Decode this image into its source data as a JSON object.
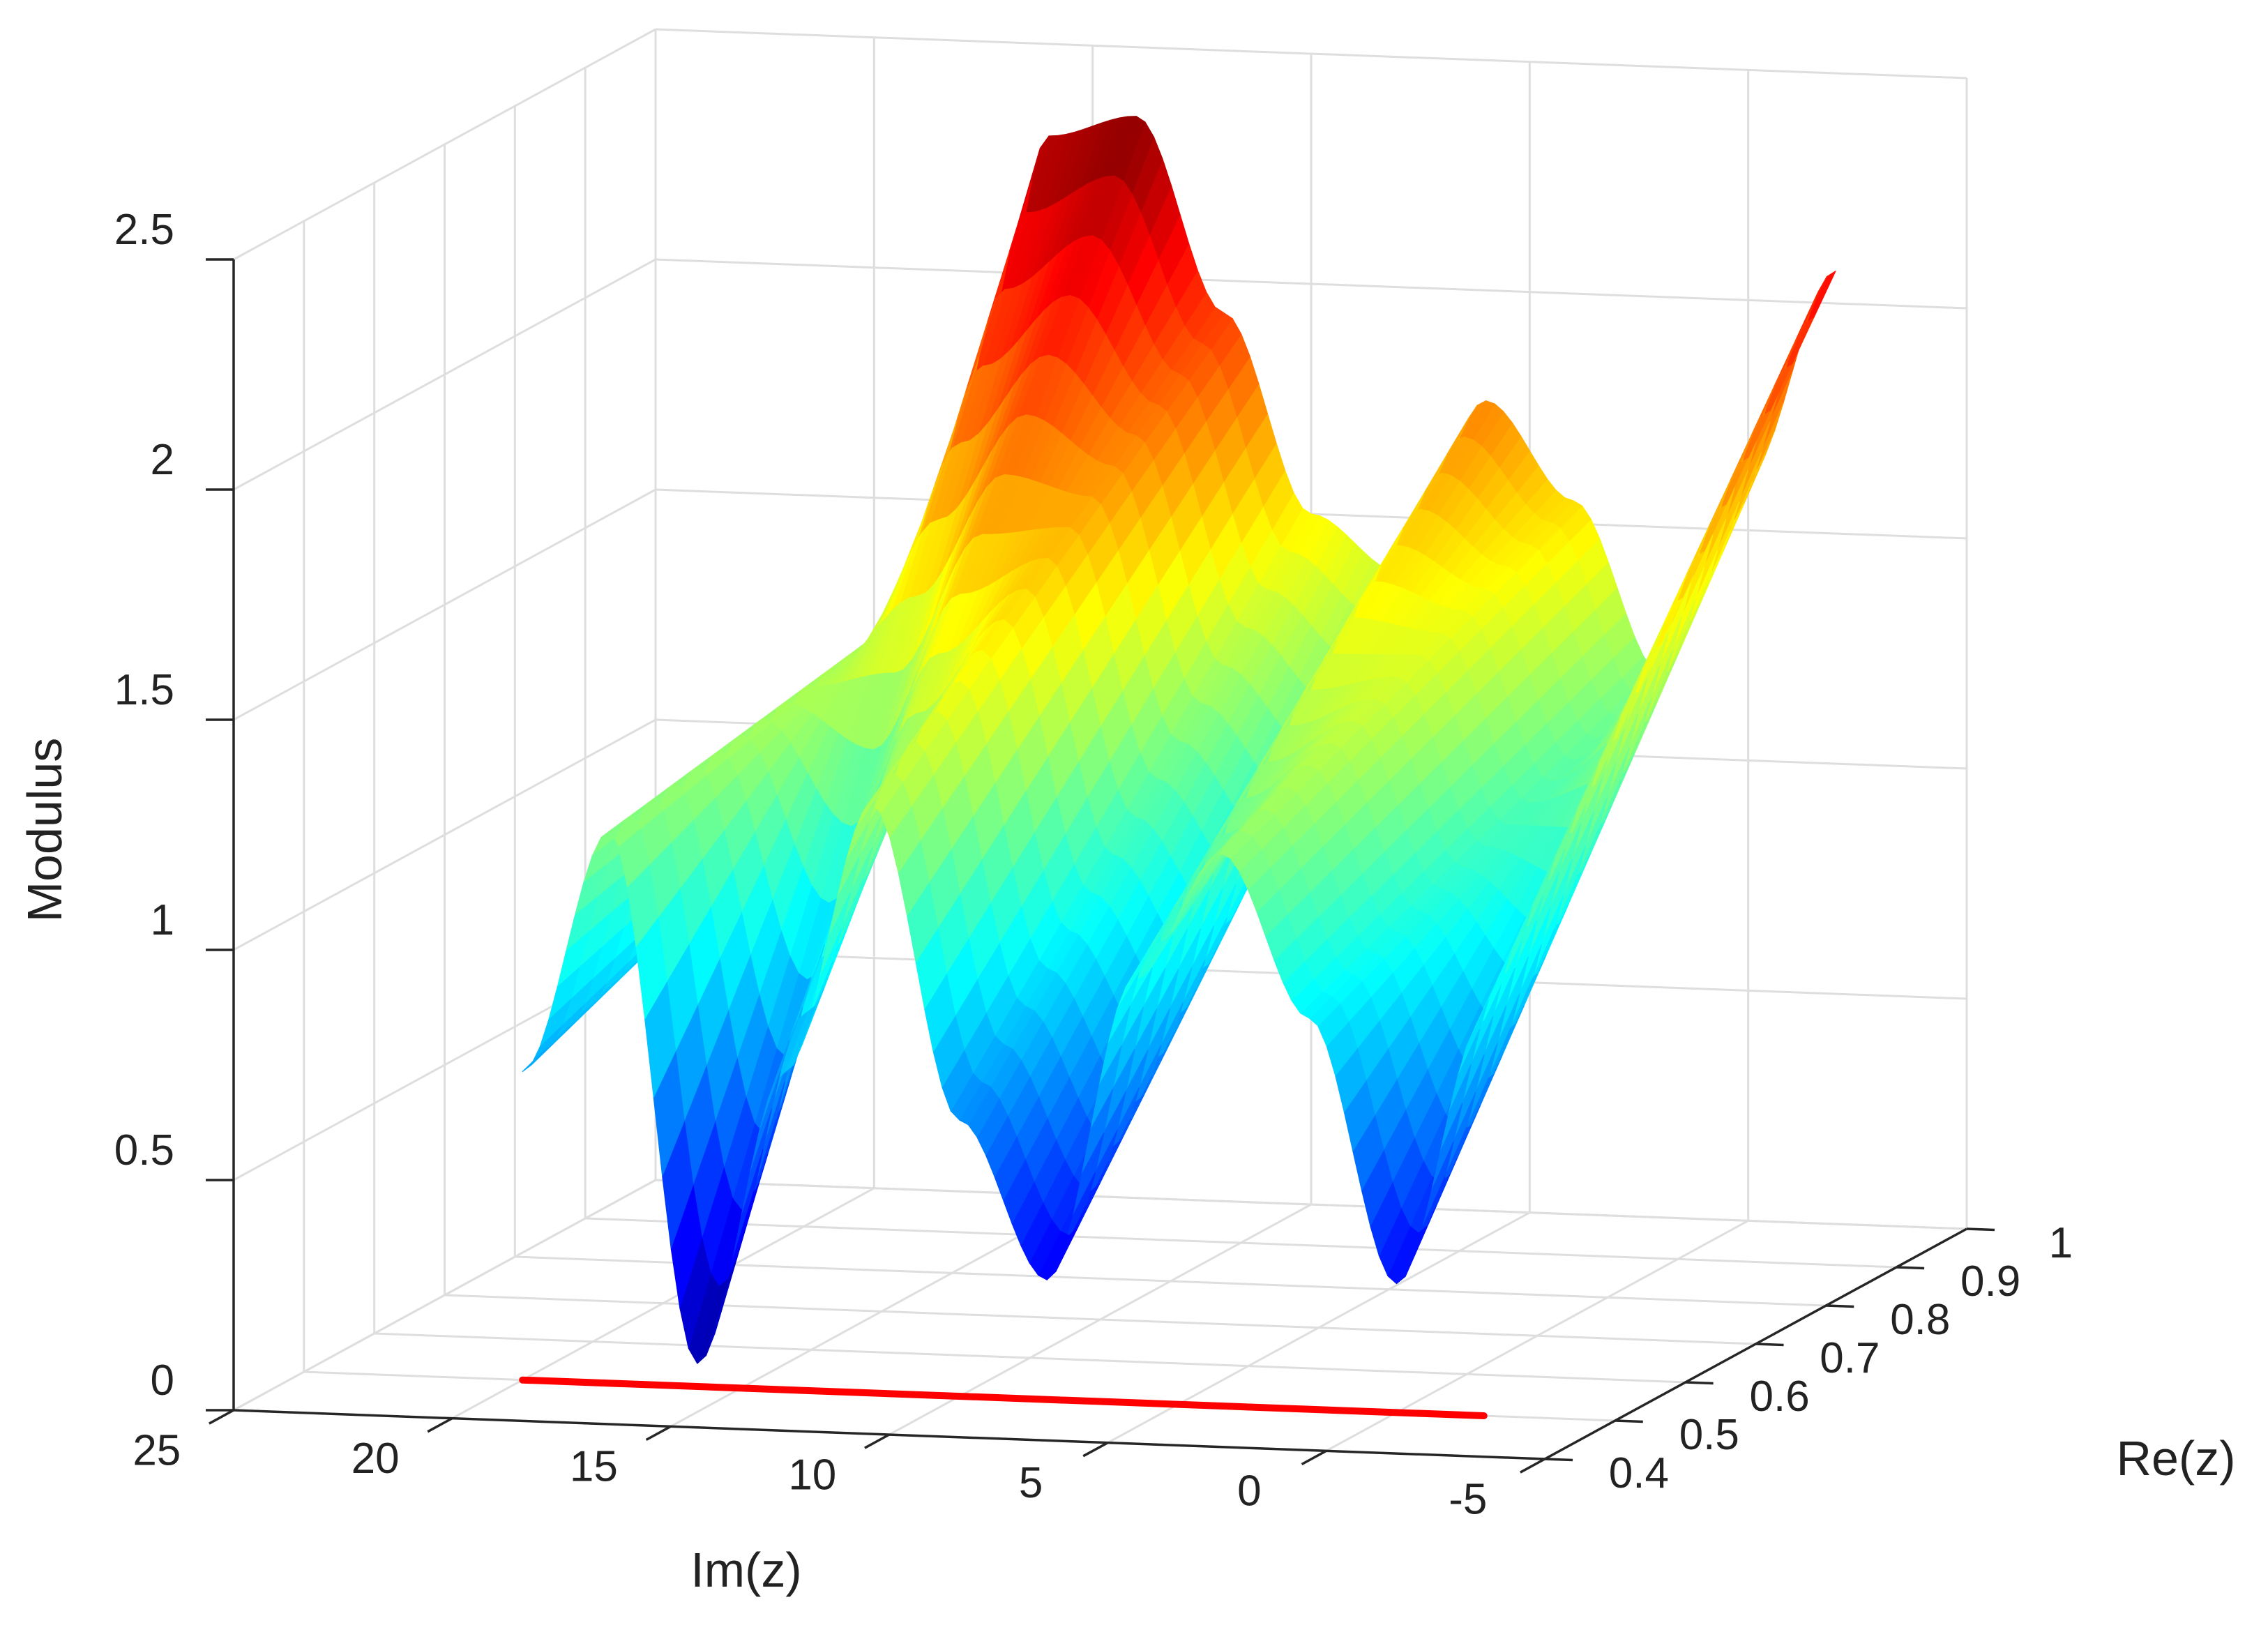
{
  "chart_data": {
    "type": "surface",
    "title": "",
    "xlabel": "Im(z)",
    "ylabel": "Re(z)",
    "zlabel": "Modulus",
    "xlim": [
      -5,
      25
    ],
    "ylim": [
      0.4,
      1
    ],
    "zlim": [
      0,
      2.5
    ],
    "x_ticks": [
      "25",
      "20",
      "15",
      "10",
      "5",
      "0",
      "-5"
    ],
    "y_ticks": [
      "0.4",
      "0.5",
      "0.6",
      "0.7",
      "0.8",
      "0.9",
      "1"
    ],
    "z_ticks": [
      "0",
      "0.5",
      "1",
      "1.5",
      "2",
      "2.5"
    ],
    "grid": true,
    "colormap": "jet",
    "surface_samples": {
      "im_values": [
        -2,
        0,
        2,
        4,
        6,
        8,
        10,
        12,
        14,
        16,
        18,
        20
      ],
      "re_values": [
        0.5,
        1.0
      ],
      "modulus_at_re_0_5": [
        0.86,
        0.28,
        0.85,
        1.2,
        0.92,
        0.26,
        0.6,
        1.28,
        0.69,
        0.05,
        1.2,
        0.67
      ],
      "modulus_at_re_1_0": [
        2.07,
        1.62,
        1.18,
        1.55,
        1.76,
        1.38,
        1.5,
        1.93,
        2.35,
        2.3,
        1.34,
        1.0
      ]
    },
    "zero_line": {
      "color": "#ff0000",
      "re": 0.5,
      "im_range": [
        -2,
        20
      ],
      "modulus": 0
    }
  }
}
